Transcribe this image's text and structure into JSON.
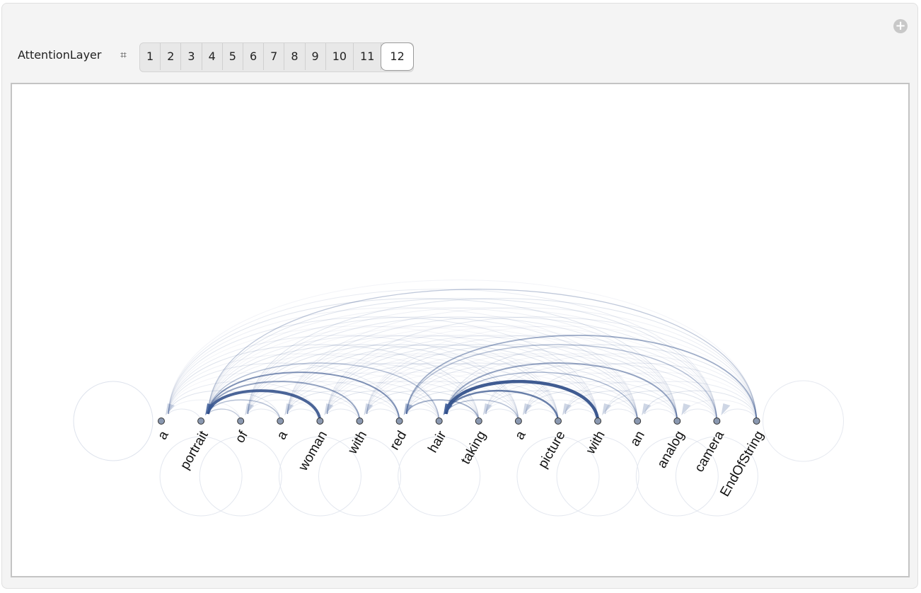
{
  "control": {
    "label": "AttentionLayer",
    "symbol": "⌗",
    "tabs": [
      "1",
      "2",
      "3",
      "4",
      "5",
      "6",
      "7",
      "8",
      "9",
      "10",
      "11",
      "12"
    ],
    "selected": "12"
  },
  "graph": {
    "tokens": [
      "a",
      "portrait",
      "of",
      "a",
      "woman",
      "with",
      "red",
      "hair",
      "taking",
      "a",
      "picture",
      "with",
      "an",
      "analog",
      "camera",
      "EndOfString"
    ]
  }
}
